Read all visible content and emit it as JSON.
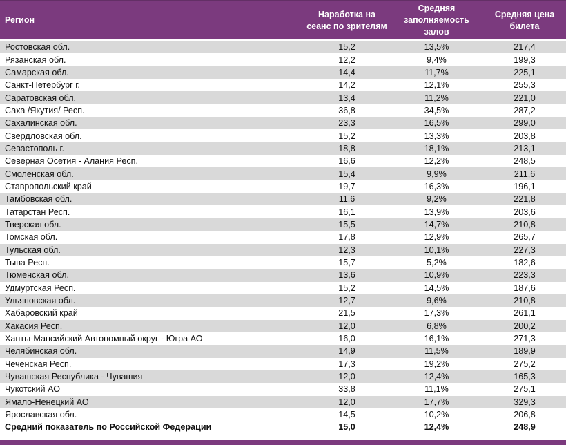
{
  "table": {
    "columns": [
      "Регион",
      "Наработка на сеанс по зрителям",
      "Средняя заполняемость залов",
      "Средняя цена билета"
    ],
    "rows": [
      [
        "Ростовская обл.",
        "15,2",
        "13,5%",
        "217,4"
      ],
      [
        "Рязанская обл.",
        "12,2",
        "9,4%",
        "199,3"
      ],
      [
        "Самарская обл.",
        "14,4",
        "11,7%",
        "225,1"
      ],
      [
        "Санкт-Петербург г.",
        "14,2",
        "12,1%",
        "255,3"
      ],
      [
        "Саратовская обл.",
        "13,4",
        "11,2%",
        "221,0"
      ],
      [
        "Саха /Якутия/ Респ.",
        "36,8",
        "34,5%",
        "287,2"
      ],
      [
        "Сахалинская обл.",
        "23,3",
        "16,5%",
        "299,0"
      ],
      [
        "Свердловская обл.",
        "15,2",
        "13,3%",
        "203,8"
      ],
      [
        "Севастополь г.",
        "18,8",
        "18,1%",
        "213,1"
      ],
      [
        "Северная Осетия - Алания Респ.",
        "16,6",
        "12,2%",
        "248,5"
      ],
      [
        "Смоленская обл.",
        "15,4",
        "9,9%",
        "211,6"
      ],
      [
        "Ставропольский край",
        "19,7",
        "16,3%",
        "196,1"
      ],
      [
        "Тамбовская обл.",
        "11,6",
        "9,2%",
        "221,8"
      ],
      [
        "Татарстан Респ.",
        "16,1",
        "13,9%",
        "203,6"
      ],
      [
        "Тверская обл.",
        "15,5",
        "14,7%",
        "210,8"
      ],
      [
        "Томская обл.",
        "17,8",
        "12,9%",
        "265,7"
      ],
      [
        "Тульская обл.",
        "12,3",
        "10,1%",
        "227,3"
      ],
      [
        "Тыва Респ.",
        "15,7",
        "5,2%",
        "182,6"
      ],
      [
        "Тюменская обл.",
        "13,6",
        "10,9%",
        "223,3"
      ],
      [
        "Удмуртская Респ.",
        "15,2",
        "14,5%",
        "187,6"
      ],
      [
        "Ульяновская обл.",
        "12,7",
        "9,6%",
        "210,8"
      ],
      [
        "Хабаровский край",
        "21,5",
        "17,3%",
        "261,1"
      ],
      [
        "Хакасия Респ.",
        "12,0",
        "6,8%",
        "200,2"
      ],
      [
        "Ханты-Мансийский Автономный округ - Югра АО",
        "16,0",
        "16,1%",
        "271,3"
      ],
      [
        "Челябинская обл.",
        "14,9",
        "11,5%",
        "189,9"
      ],
      [
        "Чеченская Респ.",
        "17,3",
        "19,2%",
        "275,2"
      ],
      [
        "Чувашская Республика - Чувашия",
        "12,0",
        "12,4%",
        "165,3"
      ],
      [
        "Чукотский АО",
        "33,8",
        "11,1%",
        "275,1"
      ],
      [
        "Ямало-Ненецкий АО",
        "12,0",
        "17,7%",
        "329,3"
      ],
      [
        "Ярославская обл.",
        "14,5",
        "10,2%",
        "206,8"
      ]
    ],
    "footer": [
      "Средний показатель по Российской Федерации",
      "15,0",
      "12,4%",
      "248,9"
    ]
  },
  "colors": {
    "header_bg": "#7b3a7e",
    "header_text": "#ffffff",
    "alt_row_bg": "#d9d9d9",
    "body_text": "#111111",
    "bottom_bar": "#7b3a7e"
  }
}
